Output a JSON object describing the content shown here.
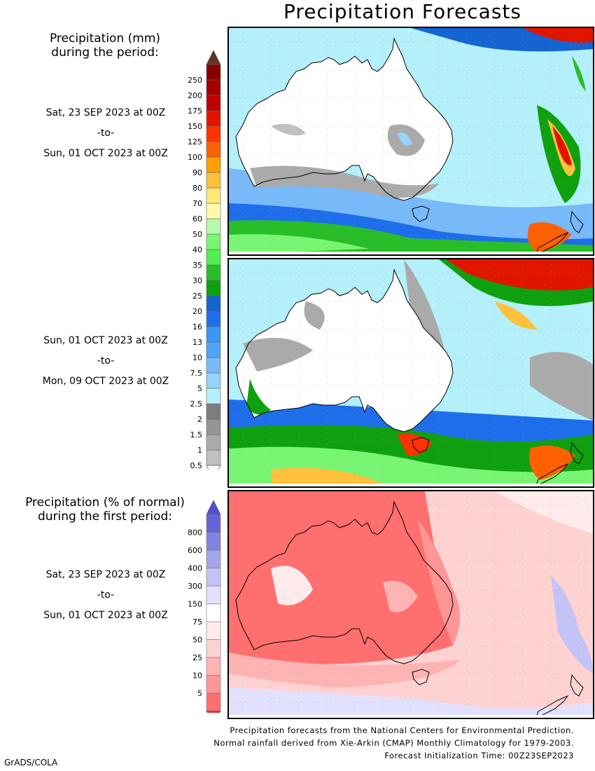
{
  "title": "Precipitation Forecasts",
  "mm_legend": {
    "heading_line1": "Precipitation (mm)",
    "heading_line2": "during the period:",
    "levels": [
      "0.5",
      "1",
      "1.5",
      "2",
      "2.5",
      "5",
      "7.5",
      "10",
      "13",
      "16",
      "20",
      "25",
      "30",
      "35",
      "40",
      "50",
      "60",
      "70",
      "80",
      "90",
      "100",
      "125",
      "150",
      "175",
      "200",
      "250"
    ],
    "colors": [
      "#c0c0c0",
      "#aaaaaa",
      "#959595",
      "#7d7d7d",
      "#b4f0fa",
      "#96d2fa",
      "#78b9fa",
      "#50a5f5",
      "#3c96f5",
      "#1e6eeb",
      "#1464d2",
      "#0fa00f",
      "#28be28",
      "#50f050",
      "#78f573",
      "#b4faaa",
      "#fffaaa",
      "#ffe878",
      "#ffc03c",
      "#ffa000",
      "#ff6000",
      "#ff3200",
      "#e11400",
      "#c00000",
      "#a50000",
      "#870000"
    ],
    "top_arrow_color": "#643228"
  },
  "pct_legend": {
    "heading_line1": "Precipitation (% of normal)",
    "heading_line2": "during the first period:",
    "levels": [
      "5",
      "10",
      "25",
      "50",
      "75",
      "150",
      "300",
      "400",
      "600",
      "800"
    ],
    "colors": [
      "#ff7070",
      "#ff9595",
      "#ffb4b4",
      "#ffd2d2",
      "#ffebeb",
      "#ffffff",
      "#e1e1ff",
      "#c3c3f5",
      "#a5a5eb",
      "#8282e1",
      "#6464d7"
    ],
    "bottom_arrow_color": "#e13c3c",
    "top_arrow_color": "#5050d2"
  },
  "periods": [
    {
      "start": "Sat, 23 SEP 2023 at 00Z",
      "sep": "-to-",
      "end": "Sun, 01 OCT 2023 at 00Z"
    },
    {
      "start": "Sun, 01 OCT 2023 at 00Z",
      "sep": "-to-",
      "end": "Mon, 09 OCT 2023 at 00Z"
    },
    {
      "start": "Sat, 23 SEP 2023 at 00Z",
      "sep": "-to-",
      "end": "Sun, 01 OCT 2023 at 00Z"
    }
  ],
  "footer": {
    "line1": "Precipitation forecasts from the National Centers for Environmental Prediction.",
    "line2": "Normal rainfall derived from Xie-Arkin (CMAP) Monthly Climatology for 1979-2003.",
    "line3": "Forecast Initialization Time: 00Z23SEP2023"
  },
  "credit": "GrADS/COLA"
}
